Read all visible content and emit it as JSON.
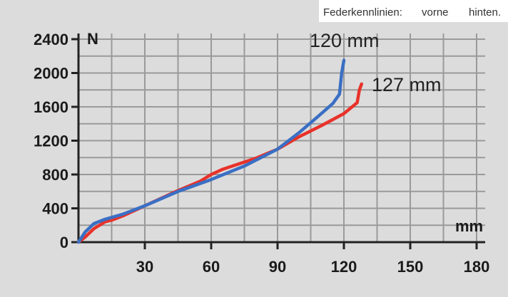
{
  "chart_data": {
    "type": "line",
    "legend": {
      "title": "Federkennlinien:",
      "placement": "top-right",
      "entries": [
        {
          "label": "vorne",
          "color": "#2a8fd6"
        },
        {
          "label": "hinten.",
          "color": "#e8322a"
        }
      ]
    },
    "xlabel": "mm",
    "ylabel": "N",
    "xlim": [
      0,
      180
    ],
    "ylim": [
      0,
      2400
    ],
    "x_ticks": [
      30,
      60,
      90,
      120,
      150,
      180
    ],
    "y_ticks": [
      0,
      400,
      800,
      1200,
      1600,
      2000,
      2400
    ],
    "grid": true,
    "annotations": [
      {
        "text": "120 mm",
        "series": 0
      },
      {
        "text": "127 mm",
        "series": 1
      }
    ],
    "series": [
      {
        "color": "#3a6fc4",
        "x": [
          0,
          3,
          7,
          12,
          20,
          30,
          45,
          60,
          75,
          90,
          100,
          108,
          115,
          118,
          119,
          120
        ],
        "y": [
          0,
          120,
          220,
          270,
          330,
          430,
          600,
          740,
          900,
          1100,
          1300,
          1480,
          1640,
          1750,
          2000,
          2150
        ]
      },
      {
        "color": "#e8322a",
        "x": [
          0,
          3,
          7,
          12,
          15,
          17,
          20,
          30,
          45,
          55,
          60,
          65,
          80,
          90,
          100,
          110,
          120,
          126,
          127,
          128
        ],
        "y": [
          0,
          60,
          160,
          240,
          260,
          280,
          310,
          430,
          610,
          720,
          800,
          860,
          990,
          1100,
          1250,
          1380,
          1520,
          1650,
          1800,
          1870
        ]
      }
    ]
  }
}
